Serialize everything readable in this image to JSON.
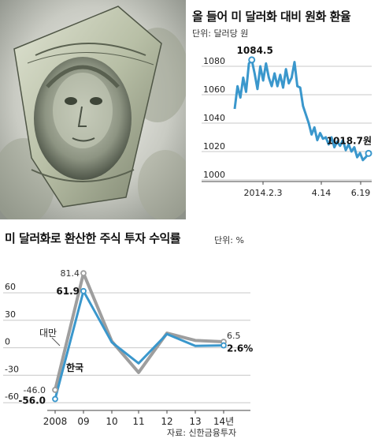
{
  "photo": {
    "description_icon": "dollar-bill-portrait-icon"
  },
  "colors": {
    "accent": "#3a97cc",
    "secondary": "#9e9e9e",
    "grid": "#c8c8c8"
  },
  "chart_data": [
    {
      "type": "line",
      "title": "올 들어 미 달러화 대비 원화 환율",
      "unit": "단위: 달러당 원",
      "ylim": [
        1000,
        1090
      ],
      "yticks": [
        1080,
        1060,
        1040,
        1020,
        1000
      ],
      "xtick_labels": [
        "2014.2.3",
        "4.14",
        "6.19"
      ],
      "annotations": [
        {
          "text": "1084.5",
          "at_index": 6
        },
        {
          "text": "1018.7원",
          "at_index": 47
        }
      ],
      "series": [
        {
          "values": [
            1050,
            1066,
            1058,
            1072,
            1062,
            1082,
            1084.5,
            1075,
            1064,
            1080,
            1070,
            1082,
            1072,
            1066,
            1075,
            1066,
            1074,
            1065,
            1078,
            1068,
            1072,
            1083,
            1066,
            1065,
            1052,
            1046,
            1040,
            1032,
            1037,
            1028,
            1033,
            1029,
            1030,
            1025,
            1030,
            1023,
            1027,
            1024,
            1028,
            1021,
            1025,
            1020,
            1023,
            1016,
            1019,
            1014,
            1016,
            1018.7
          ]
        }
      ]
    },
    {
      "type": "line",
      "title": "미 달러화로 환산한 주식 투자 수익률",
      "unit": "단위: %",
      "source": "자료: 신한금융투자",
      "ylim": [
        -65,
        85
      ],
      "yticks": [
        60,
        30,
        0,
        -30,
        -60
      ],
      "categories": [
        "2008",
        "09",
        "10",
        "11",
        "12",
        "13",
        "14년"
      ],
      "series": [
        {
          "name": "대만",
          "values": [
            -46.0,
            81.4,
            7,
            -27,
            16,
            8,
            6.5
          ],
          "start_label": "-46.0",
          "peak_label": "81.4",
          "end_label": "6.5"
        },
        {
          "name": "한국",
          "values": [
            -56.0,
            61.9,
            6,
            -17,
            15,
            2,
            2.6
          ],
          "start_label": "-56.0",
          "peak_label": "61.9",
          "end_label": "2.6%"
        }
      ]
    }
  ]
}
